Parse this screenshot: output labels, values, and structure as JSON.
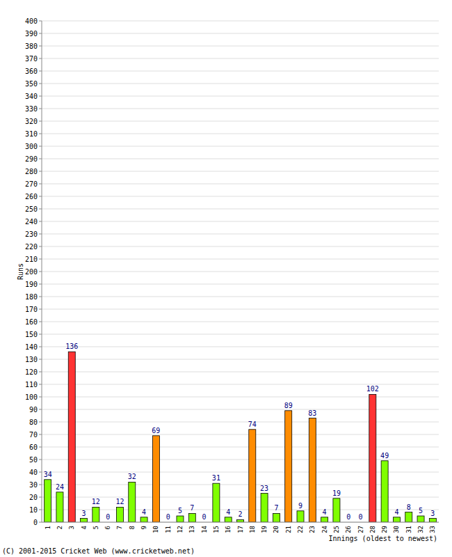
{
  "chart_data": {
    "type": "bar",
    "x_label": "Innings (oldest to newest)",
    "y_label": "Runs",
    "annotations": [
      "(C) 2001-2015 Cricket Web (www.cricketweb.net)"
    ],
    "categories": [
      "1",
      "2",
      "3",
      "4",
      "5",
      "6",
      "7",
      "8",
      "9",
      "10",
      "11",
      "12",
      "13",
      "14",
      "15",
      "16",
      "17",
      "18",
      "19",
      "20",
      "21",
      "22",
      "23",
      "24",
      "25",
      "26",
      "27",
      "28",
      "29",
      "30",
      "31",
      "32",
      "33"
    ],
    "values": [
      34,
      24,
      136,
      3,
      12,
      0,
      12,
      32,
      4,
      69,
      0,
      5,
      7,
      0,
      31,
      4,
      2,
      74,
      23,
      7,
      89,
      9,
      83,
      4,
      19,
      0,
      0,
      102,
      49,
      4,
      8,
      5,
      3
    ],
    "colors": [
      "#80ff00",
      "#80ff00",
      "#ff3333",
      "#80ff00",
      "#80ff00",
      "#80ff00",
      "#80ff00",
      "#80ff00",
      "#80ff00",
      "#ff8c00",
      "#80ff00",
      "#80ff00",
      "#80ff00",
      "#80ff00",
      "#80ff00",
      "#80ff00",
      "#80ff00",
      "#ff8c00",
      "#80ff00",
      "#80ff00",
      "#ff8c00",
      "#80ff00",
      "#ff8c00",
      "#80ff00",
      "#80ff00",
      "#80ff00",
      "#80ff00",
      "#ff3333",
      "#80ff00",
      "#80ff00",
      "#80ff00",
      "#80ff00",
      "#80ff00"
    ],
    "ylim": [
      0,
      400
    ],
    "yticks": [
      0,
      10,
      20,
      30,
      40,
      50,
      60,
      70,
      80,
      90,
      100,
      110,
      120,
      130,
      140,
      150,
      160,
      170,
      180,
      190,
      200,
      210,
      220,
      230,
      240,
      250,
      260,
      270,
      280,
      290,
      300,
      310,
      320,
      330,
      340,
      350,
      360,
      370,
      380,
      390,
      400
    ],
    "grid": true,
    "data_labels": true
  }
}
